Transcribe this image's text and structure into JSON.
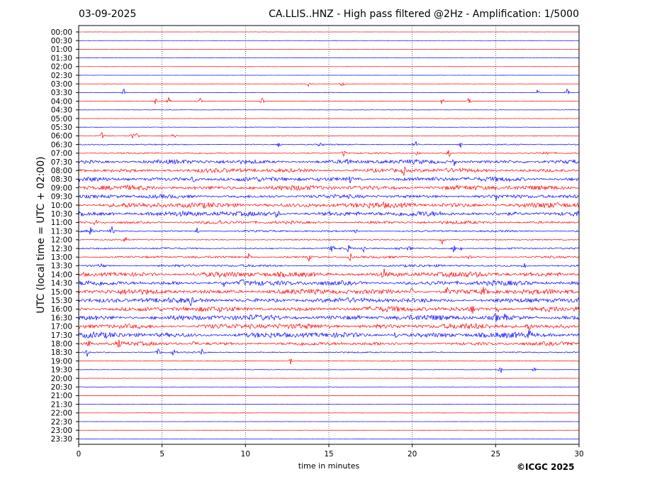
{
  "header": {
    "date": "03-09-2025",
    "title": "CA.LLIS..HNZ - High pass filtered @2Hz - Amplification: 1/5000"
  },
  "footer": {
    "copyright": "©ICGC 2025"
  },
  "chart_data": {
    "type": "line",
    "title": "CA.LLIS..HNZ - High pass filtered @2Hz - Amplification: 1/5000",
    "xlabel": "time in minutes",
    "ylabel": "UTC (local time = UTC + 02:00)",
    "xlim": [
      0,
      30
    ],
    "xticks": [
      0,
      5,
      10,
      15,
      20,
      25,
      30
    ],
    "grid": "vertical dotted lines at each 5 minutes",
    "row_colors": [
      "#ff0000",
      "#0000ff"
    ],
    "rows": [
      "00:00",
      "00:30",
      "01:00",
      "01:30",
      "02:00",
      "02:30",
      "03:00",
      "03:30",
      "04:00",
      "04:30",
      "05:00",
      "05:30",
      "06:00",
      "06:30",
      "07:00",
      "07:30",
      "08:00",
      "08:30",
      "09:00",
      "09:30",
      "10:00",
      "10:30",
      "11:00",
      "11:30",
      "12:00",
      "12:30",
      "13:00",
      "13:30",
      "14:00",
      "14:30",
      "15:00",
      "15:30",
      "16:00",
      "16:30",
      "17:00",
      "17:30",
      "18:00",
      "18:30",
      "19:00",
      "19:30",
      "20:00",
      "20:30",
      "21:00",
      "21:30",
      "22:00",
      "22:30",
      "23:00",
      "23:30"
    ],
    "noise_level": [
      0.15,
      0.15,
      0.12,
      0.12,
      0.12,
      0.12,
      0.2,
      0.3,
      0.3,
      0.3,
      0.3,
      0.35,
      0.5,
      0.8,
      0.9,
      2.8,
      2.8,
      3.0,
      3.2,
      2.5,
      3.6,
      3.4,
      2.0,
      1.2,
      0.8,
      1.2,
      1.4,
      1.6,
      3.6,
      3.2,
      3.4,
      3.2,
      3.4,
      3.6,
      3.6,
      3.6,
      2.4,
      0.9,
      0.5,
      0.35,
      0.25,
      0.25,
      0.2,
      0.2,
      0.2,
      0.15,
      0.15,
      0.15
    ],
    "events": [
      {
        "row": "03:00",
        "minutes": [
          13.8,
          15.8
        ]
      },
      {
        "row": "03:30",
        "minutes": [
          2.7,
          27.5,
          29.3
        ]
      },
      {
        "row": "04:00",
        "minutes": [
          4.6,
          5.4,
          7.3,
          11.0,
          21.8,
          23.4
        ]
      },
      {
        "row": "06:00",
        "minutes": [
          1.4,
          3.2,
          3.5,
          5.7
        ]
      },
      {
        "row": "06:30",
        "minutes": [
          12.0,
          14.5,
          20.2,
          22.9
        ]
      },
      {
        "row": "07:00",
        "minutes": [
          15.9,
          20.3,
          22.2,
          28.0
        ]
      },
      {
        "row": "07:30",
        "minutes": [
          16.1,
          22.5
        ]
      },
      {
        "row": "08:00",
        "minutes": [
          19.5
        ]
      },
      {
        "row": "08:30",
        "minutes": [
          6.9,
          16.3
        ]
      },
      {
        "row": "09:30",
        "minutes": [
          25.0
        ]
      },
      {
        "row": "10:30",
        "minutes": [
          11.9
        ]
      },
      {
        "row": "11:00",
        "minutes": [
          1.0,
          8.4
        ]
      },
      {
        "row": "11:30",
        "minutes": [
          0.7,
          2.0,
          7.1,
          16.6
        ]
      },
      {
        "row": "12:00",
        "minutes": [
          2.8,
          21.8
        ]
      },
      {
        "row": "12:30",
        "minutes": [
          15.2,
          16.2,
          17.1,
          19.2,
          19.8,
          22.5,
          22.9
        ]
      },
      {
        "row": "13:00",
        "minutes": [
          10.2,
          13.8,
          16.3,
          23.4
        ]
      },
      {
        "row": "13:30",
        "minutes": [
          1.4,
          26.7
        ]
      },
      {
        "row": "14:00",
        "minutes": [
          18.3
        ]
      },
      {
        "row": "14:30",
        "minutes": [
          8.7,
          9.8
        ]
      },
      {
        "row": "15:00",
        "minutes": [
          20.0,
          22.1,
          24.3
        ]
      },
      {
        "row": "15:30",
        "minutes": [
          6.7
        ]
      },
      {
        "row": "16:00",
        "minutes": [
          23.6,
          25.1
        ]
      },
      {
        "row": "16:30",
        "minutes": [
          25.0,
          25.6
        ]
      },
      {
        "row": "17:00",
        "minutes": [
          27.0
        ]
      },
      {
        "row": "17:30",
        "minutes": [
          19.0,
          27.0
        ]
      },
      {
        "row": "18:00",
        "minutes": [
          0.6,
          2.4,
          6.9,
          29.5
        ]
      },
      {
        "row": "18:30",
        "minutes": [
          0.5,
          4.8,
          5.7,
          7.4
        ]
      },
      {
        "row": "19:00",
        "minutes": [
          12.7
        ]
      },
      {
        "row": "19:30",
        "minutes": [
          25.3,
          27.3
        ]
      }
    ]
  }
}
